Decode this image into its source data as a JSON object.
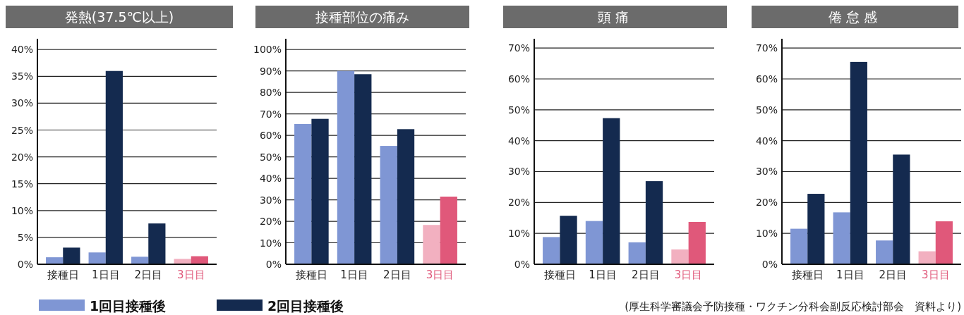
{
  "chart_data": [
    {
      "type": "bar",
      "title": "発熱(37.5℃以上)",
      "categories": [
        "接種日",
        "1日目",
        "2日目",
        "3日目"
      ],
      "ylim": [
        0,
        42
      ],
      "yticks": [
        {
          "value": 0,
          "label": "0%"
        },
        {
          "value": 5,
          "label": "5%"
        },
        {
          "value": 10,
          "label": "10%"
        },
        {
          "value": 15,
          "label": "15%"
        },
        {
          "value": 20,
          "label": "20%"
        },
        {
          "value": 25,
          "label": "25%"
        },
        {
          "value": 30,
          "label": "30%"
        },
        {
          "value": 35,
          "label": "35%"
        },
        {
          "value": 40,
          "label": "40%"
        }
      ],
      "grid": "y",
      "legend": "bottom",
      "series": [
        {
          "name": "1回目接種後",
          "color": "#7f96d4",
          "colors": [
            "#7f96d4",
            "#7f96d4",
            "#7f96d4",
            "#f2b0c0"
          ],
          "values": [
            1.3,
            2.2,
            1.4,
            1.0
          ]
        },
        {
          "name": "2回目接種後",
          "color": "#142a4f",
          "colors": [
            "#142a4f",
            "#142a4f",
            "#142a4f",
            "#e0587a"
          ],
          "values": [
            3.1,
            36.0,
            7.6,
            1.5
          ]
        }
      ]
    },
    {
      "type": "bar",
      "title": "接種部位の痛み",
      "categories": [
        "接種日",
        "1日目",
        "2日目",
        "3日目"
      ],
      "ylim": [
        0,
        105
      ],
      "yticks": [
        {
          "value": 0,
          "label": "0%"
        },
        {
          "value": 10,
          "label": "10%"
        },
        {
          "value": 20,
          "label": "20%"
        },
        {
          "value": 30,
          "label": "30%"
        },
        {
          "value": 40,
          "label": "40%"
        },
        {
          "value": 50,
          "label": "50%"
        },
        {
          "value": 60,
          "label": "60%"
        },
        {
          "value": 70,
          "label": "70%"
        },
        {
          "value": 80,
          "label": "80%"
        },
        {
          "value": 90,
          "label": "90%"
        },
        {
          "value": 100,
          "label": "100%"
        }
      ],
      "grid": "y",
      "series": [
        {
          "color": "#7f96d4",
          "colors": [
            "#7f96d4",
            "#7f96d4",
            "#7f96d4",
            "#f2b0c0"
          ],
          "values": [
            65.3,
            90.0,
            55.1,
            18.3
          ]
        },
        {
          "color": "#142a4f",
          "colors": [
            "#142a4f",
            "#142a4f",
            "#142a4f",
            "#e0587a"
          ],
          "values": [
            67.7,
            88.5,
            62.9,
            31.5
          ]
        }
      ]
    },
    {
      "type": "bar",
      "title": "頭痛",
      "categories": [
        "接種日",
        "1日目",
        "2日目",
        "3日目"
      ],
      "ylim": [
        0,
        73
      ],
      "yticks": [
        {
          "value": 0,
          "label": "0%"
        },
        {
          "value": 10,
          "label": "10%"
        },
        {
          "value": 20,
          "label": "20%"
        },
        {
          "value": 30,
          "label": "30%"
        },
        {
          "value": 40,
          "label": "40%"
        },
        {
          "value": 50,
          "label": "50%"
        },
        {
          "value": 60,
          "label": "60%"
        },
        {
          "value": 70,
          "label": "70%"
        }
      ],
      "grid": "y",
      "series": [
        {
          "color": "#7f96d4",
          "colors": [
            "#7f96d4",
            "#7f96d4",
            "#7f96d4",
            "#f2b0c0"
          ],
          "values": [
            8.8,
            14.0,
            7.1,
            4.8
          ]
        },
        {
          "color": "#142a4f",
          "colors": [
            "#142a4f",
            "#142a4f",
            "#142a4f",
            "#e0587a"
          ],
          "values": [
            15.7,
            47.3,
            26.9,
            13.7
          ]
        }
      ]
    },
    {
      "type": "bar",
      "title": "倦怠感",
      "categories": [
        "接種日",
        "1日目",
        "2日目",
        "3日目"
      ],
      "ylim": [
        0,
        73
      ],
      "yticks": [
        {
          "value": 0,
          "label": "0%"
        },
        {
          "value": 10,
          "label": "10%"
        },
        {
          "value": 20,
          "label": "20%"
        },
        {
          "value": 30,
          "label": "30%"
        },
        {
          "value": 40,
          "label": "40%"
        },
        {
          "value": 50,
          "label": "50%"
        },
        {
          "value": 60,
          "label": "60%"
        },
        {
          "value": 70,
          "label": "70%"
        }
      ],
      "grid": "y",
      "annotations": [
        "(厚生科学審議会予防接種・ワクチン分科会副反応検討部会　資料より)"
      ],
      "series": [
        {
          "color": "#7f96d4",
          "colors": [
            "#7f96d4",
            "#7f96d4",
            "#7f96d4",
            "#f2b0c0"
          ],
          "values": [
            11.5,
            16.8,
            7.7,
            4.2
          ]
        },
        {
          "color": "#142a4f",
          "colors": [
            "#142a4f",
            "#142a4f",
            "#142a4f",
            "#e0587a"
          ],
          "values": [
            22.8,
            65.5,
            35.5,
            13.9
          ]
        }
      ]
    }
  ]
}
